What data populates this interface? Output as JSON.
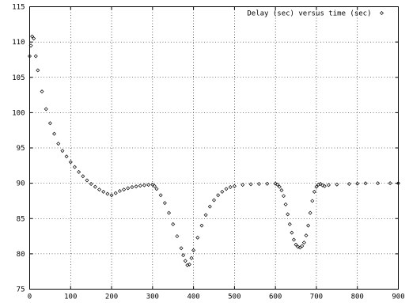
{
  "chart_data": {
    "type": "scatter",
    "title": "",
    "xlabel": "",
    "ylabel": "",
    "xlim": [
      0,
      900
    ],
    "ylim": [
      75,
      115
    ],
    "xticks": [
      0,
      100,
      200,
      300,
      400,
      500,
      600,
      700,
      800,
      900
    ],
    "yticks": [
      75,
      80,
      85,
      90,
      95,
      100,
      105,
      110,
      115
    ],
    "grid": true,
    "legend_position": "top-right",
    "series": [
      {
        "name": "Delay (sec) versus time (sec)",
        "marker": "diamond",
        "color": "#000000",
        "x": [
          0,
          3,
          6,
          10,
          15,
          20,
          30,
          40,
          50,
          60,
          70,
          80,
          90,
          100,
          110,
          120,
          130,
          140,
          150,
          160,
          170,
          180,
          190,
          200,
          210,
          220,
          230,
          240,
          250,
          260,
          270,
          280,
          290,
          300,
          305,
          310,
          320,
          330,
          340,
          350,
          360,
          370,
          375,
          380,
          385,
          390,
          395,
          400,
          410,
          420,
          430,
          440,
          450,
          460,
          470,
          480,
          490,
          500,
          520,
          540,
          560,
          580,
          600,
          605,
          610,
          615,
          620,
          625,
          630,
          635,
          640,
          645,
          650,
          655,
          660,
          665,
          670,
          675,
          680,
          685,
          690,
          695,
          700,
          705,
          710,
          715,
          720,
          730,
          750,
          780,
          800,
          820,
          850,
          880,
          900
        ],
        "y": [
          108,
          109.5,
          110.8,
          110.5,
          108,
          106,
          103,
          100.5,
          98.5,
          97,
          95.6,
          94.6,
          93.8,
          93,
          92.3,
          91.6,
          91,
          90.4,
          89.9,
          89.5,
          89.1,
          88.8,
          88.5,
          88.3,
          88.6,
          88.9,
          89.1,
          89.3,
          89.45,
          89.55,
          89.65,
          89.72,
          89.78,
          89.8,
          89.6,
          89.2,
          88.3,
          87.2,
          85.8,
          84.2,
          82.5,
          80.8,
          79.8,
          79,
          78.4,
          78.5,
          79.4,
          80.5,
          82.3,
          84,
          85.5,
          86.7,
          87.6,
          88.3,
          88.8,
          89.2,
          89.45,
          89.6,
          89.78,
          89.86,
          89.9,
          89.93,
          89.95,
          89.8,
          89.5,
          89,
          88.2,
          87,
          85.6,
          84.2,
          83,
          82,
          81.3,
          81,
          80.9,
          81.1,
          81.6,
          82.6,
          84,
          85.8,
          87.5,
          88.8,
          89.5,
          89.8,
          89.9,
          89.7,
          89.6,
          89.75,
          89.82,
          89.9,
          89.95,
          89.98,
          90,
          90,
          90
        ]
      }
    ]
  }
}
